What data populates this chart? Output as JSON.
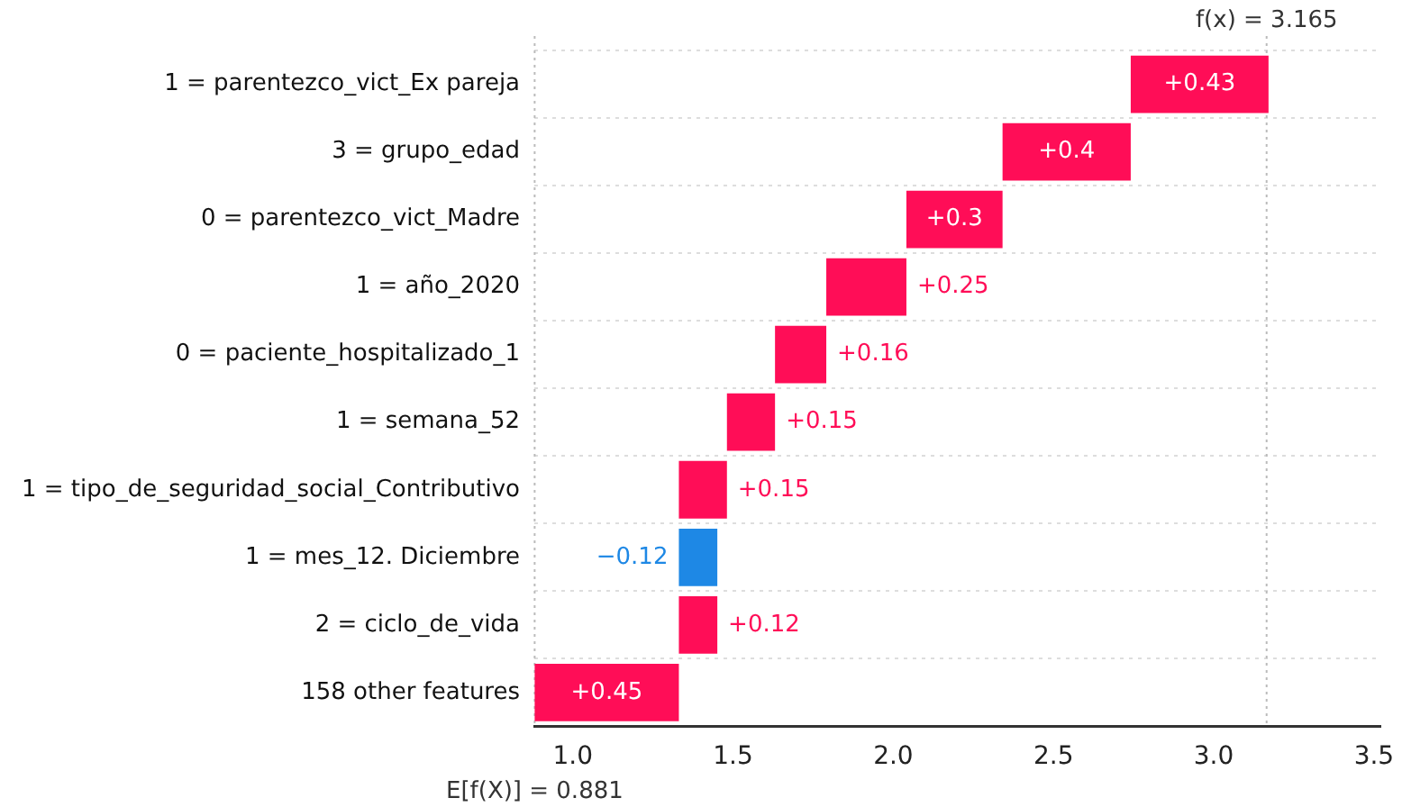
{
  "chart_data": {
    "type": "bar",
    "orientation": "horizontal",
    "categories": [
      "1 = parentezco_vict_Ex pareja",
      "3 = grupo_edad",
      "0 = parentezco_vict_Madre",
      "1 = año_2020",
      "0 = paciente_hospitalizado_1",
      "1 = semana_52",
      "1 = tipo_de_seguridad_social_Contributivo",
      "1 = mes_12. Diciembre",
      "2 = ciclo_de_vida",
      "158 other features"
    ],
    "values": [
      0.43,
      0.4,
      0.3,
      0.25,
      0.16,
      0.15,
      0.15,
      -0.12,
      0.12,
      0.45
    ],
    "base": [
      2.741,
      2.341,
      2.041,
      1.791,
      1.631,
      1.481,
      1.331,
      1.451,
      1.331,
      0.881
    ],
    "colors": [
      "#ff0d57",
      "#ff0d57",
      "#ff0d57",
      "#ff0d57",
      "#ff0d57",
      "#ff0d57",
      "#ff0d57",
      "#1e88e5",
      "#ff0d57",
      "#ff0d57"
    ],
    "value_labels": [
      "+0.43",
      "+0.4",
      "+0.3",
      "+0.25",
      "+0.16",
      "+0.15",
      "+0.15",
      "−0.12",
      "+0.12",
      "+0.45"
    ],
    "xlim": [
      0.88,
      3.52
    ],
    "xticks": [
      {
        "value": 1,
        "label": "1.0"
      },
      {
        "value": 1.5,
        "label": "1.5"
      },
      {
        "value": 2,
        "label": "2.0"
      },
      {
        "value": 2.5,
        "label": "2.5"
      },
      {
        "value": 3,
        "label": "3.0"
      },
      {
        "value": 3.5,
        "label": "3.5"
      }
    ],
    "ref_lines": [
      {
        "axis": "x",
        "value": 0.881,
        "label": "E[f(X)] = 0.881",
        "color": "#bbbbbb",
        "line_style": "dotted"
      },
      {
        "axis": "x",
        "value": 3.165,
        "label": "f(x) = 3.165",
        "color": "#bbbbbb",
        "line_style": "dotted"
      }
    ],
    "grid": "y",
    "legend": false
  }
}
